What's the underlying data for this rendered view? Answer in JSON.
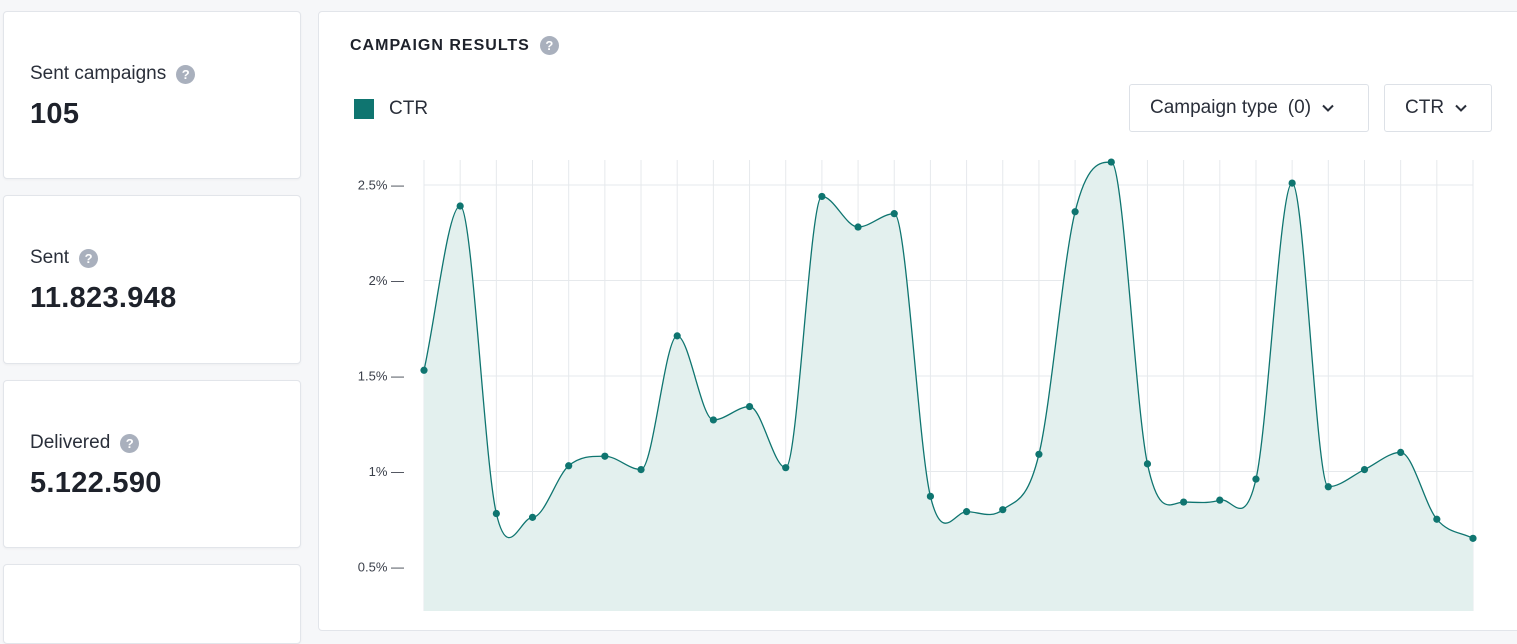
{
  "stats": {
    "sent_campaigns": {
      "label": "Sent campaigns",
      "value": "105"
    },
    "sent": {
      "label": "Sent",
      "value": "11.823.948"
    },
    "delivered": {
      "label": "Delivered",
      "value": "5.122.590"
    }
  },
  "results": {
    "title": "CAMPAIGN RESULTS",
    "help_icon": "question-circle-icon",
    "campaign_type_filter": {
      "label": "Campaign type",
      "count": "(0)"
    },
    "metric_select": {
      "label": "CTR"
    }
  },
  "colors": {
    "series": "#0f7570",
    "area_fill": "#e3f0ee",
    "grid": "#e6e9ec",
    "help_icon": "#a9b0bd"
  },
  "chart_data": {
    "type": "area",
    "title": "",
    "xlabel": "",
    "ylabel": "",
    "ylim": [
      0.25,
      2.75
    ],
    "y_ticks": [
      {
        "value": 0.5,
        "label": "0.5% —"
      },
      {
        "value": 1,
        "label": "1% —"
      },
      {
        "value": 1.5,
        "label": "1.5% —"
      },
      {
        "value": 2,
        "label": "2% —"
      },
      {
        "value": 2.5,
        "label": "2.5% —"
      }
    ],
    "grid": true,
    "legend": "top-left",
    "series": [
      {
        "name": "CTR",
        "values": [
          1.53,
          2.39,
          0.78,
          0.76,
          1.03,
          1.08,
          1.01,
          1.71,
          1.27,
          1.34,
          1.02,
          2.44,
          2.28,
          2.35,
          0.87,
          0.79,
          0.8,
          1.09,
          2.36,
          2.62,
          1.04,
          0.84,
          0.85,
          0.96,
          2.51,
          0.92,
          1.01,
          1.1,
          0.75,
          0.65
        ]
      }
    ]
  }
}
